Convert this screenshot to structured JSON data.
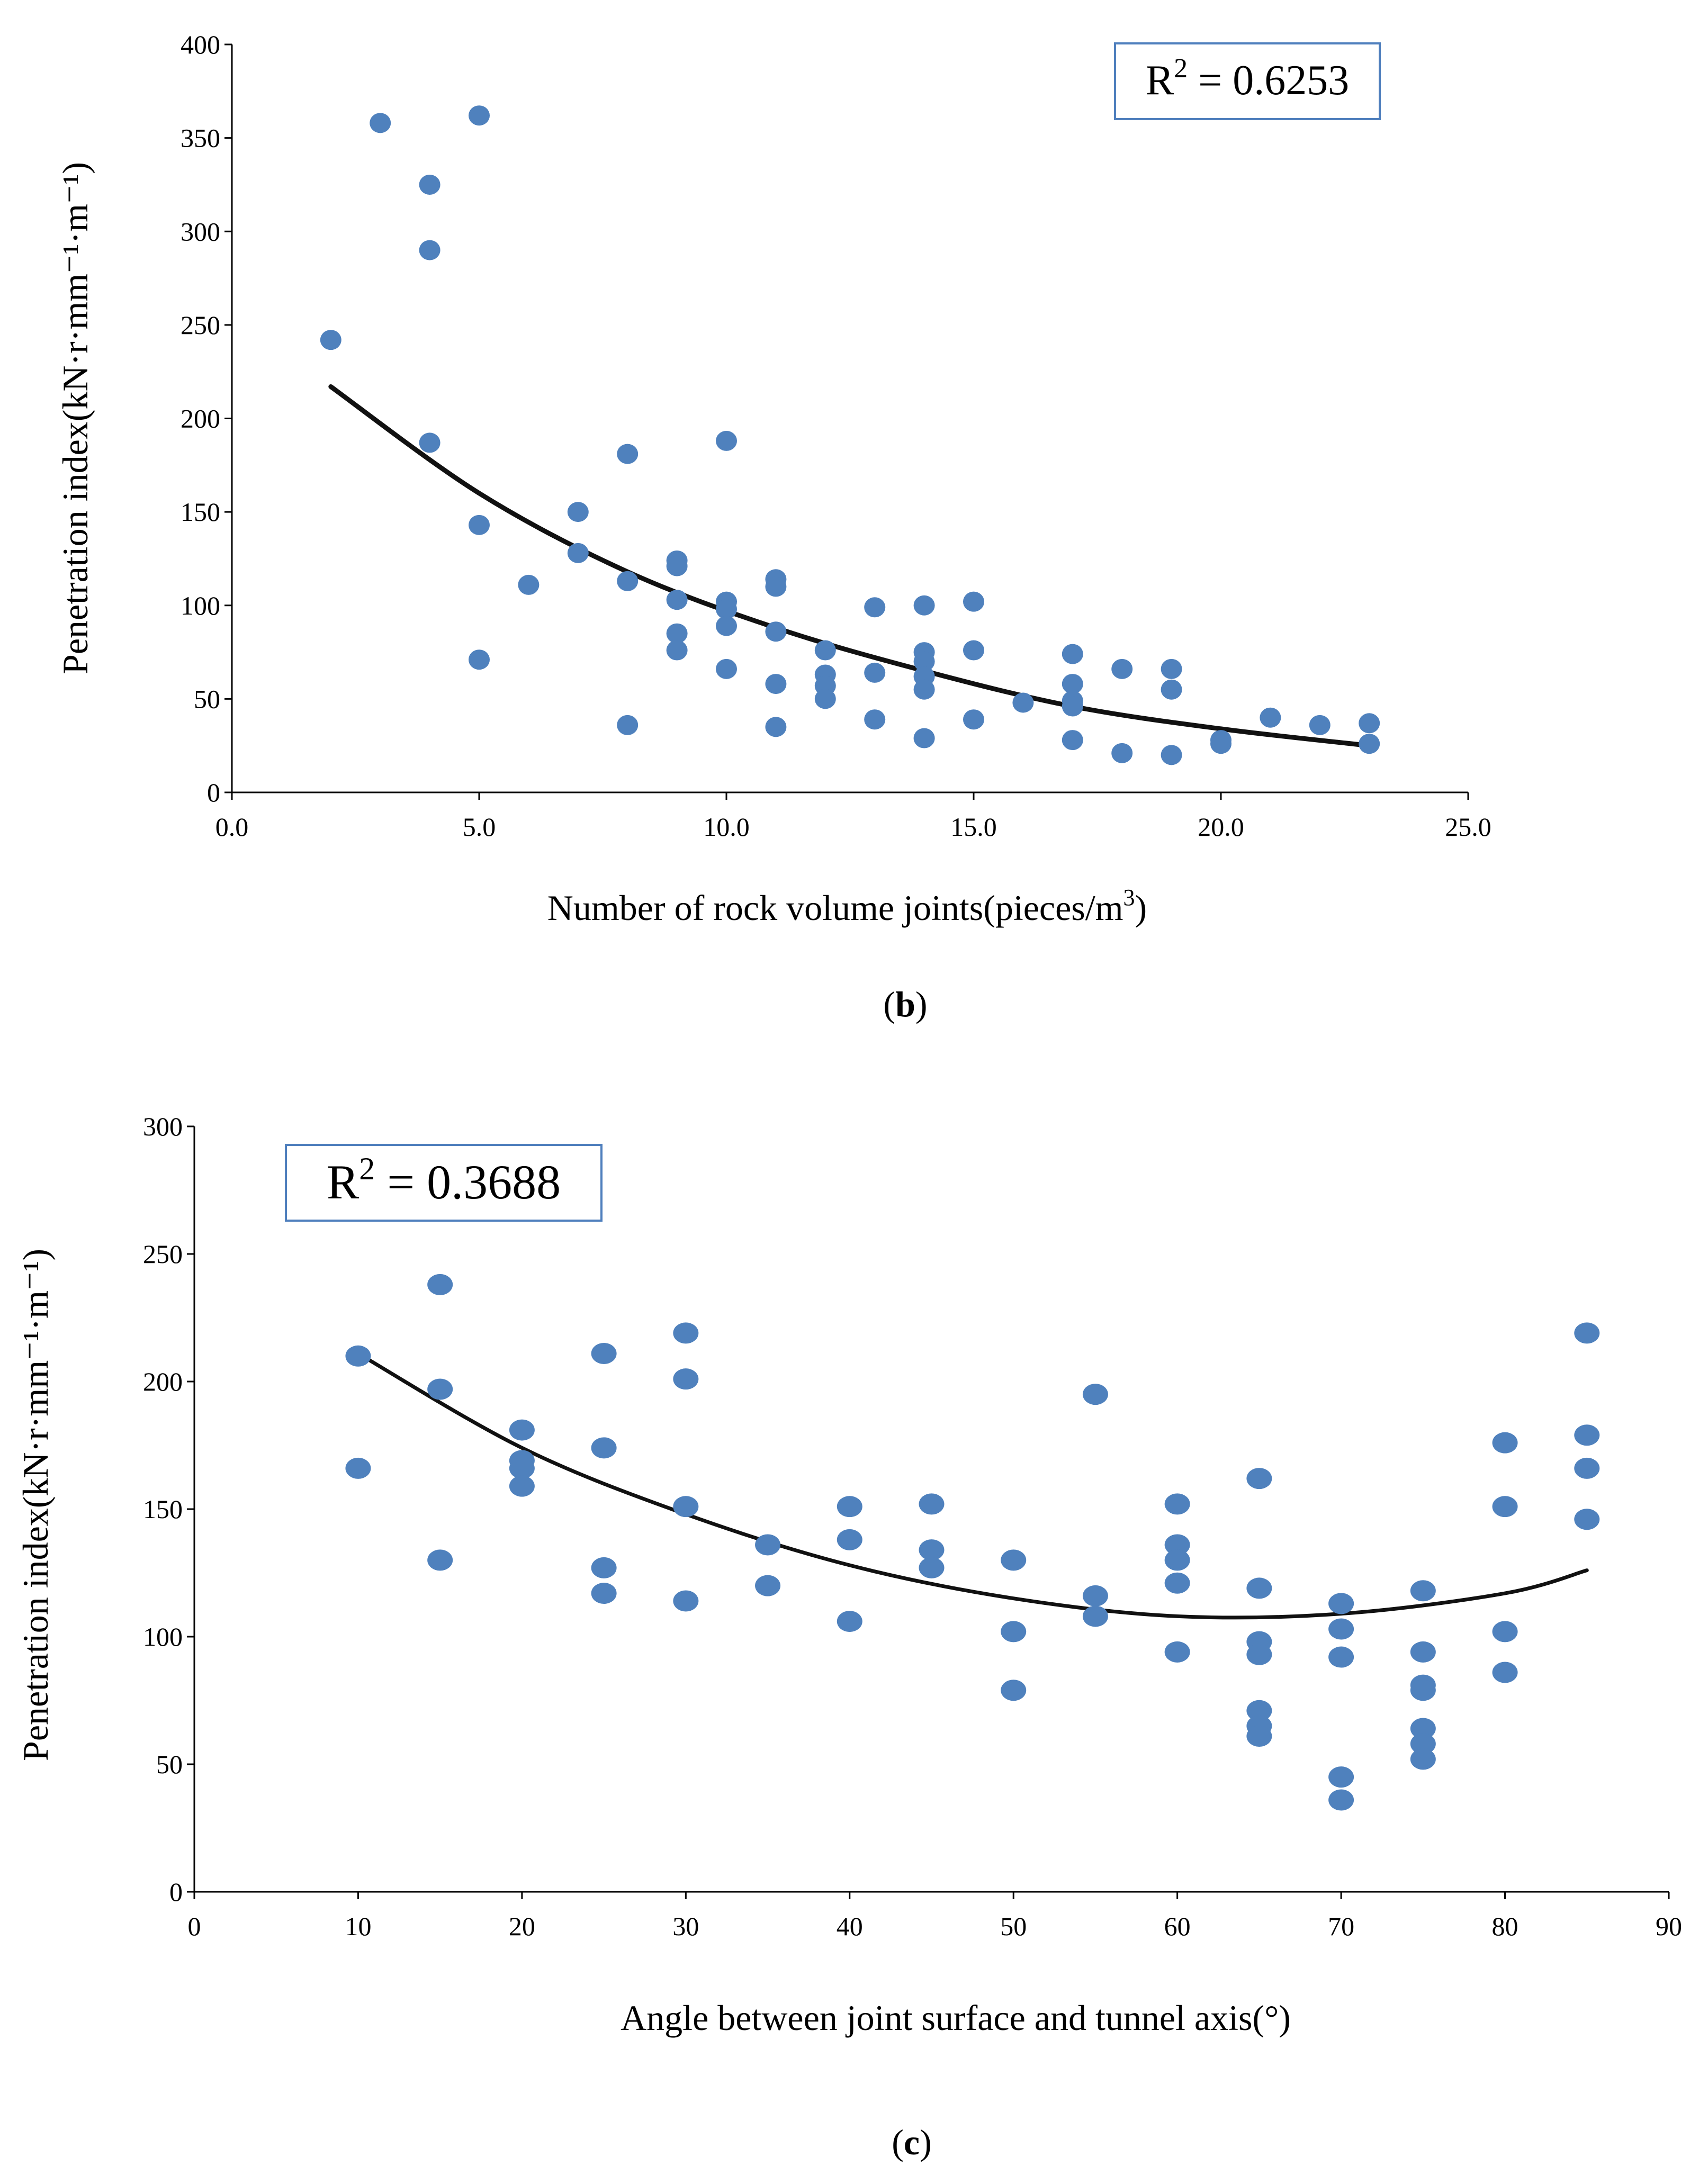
{
  "chart_data": [
    {
      "type": "scatter",
      "panel": "b",
      "xlabel": "Number of rock volume joints(pieces/m3)",
      "xlabel_main": "Number of rock volume joints(pieces/m",
      "xlabel_sup": "3",
      "xlabel_tail": ")",
      "ylabel": "Penetration index(kN·r·mm⁻¹·m⁻¹)",
      "xlim": [
        0,
        25
      ],
      "ylim": [
        0,
        400
      ],
      "xticks": [
        "0.0",
        "5.0",
        "10.0",
        "15.0",
        "20.0",
        "25.0"
      ],
      "yticks": [
        "0",
        "50",
        "100",
        "150",
        "200",
        "250",
        "300",
        "350",
        "400"
      ],
      "annotation": {
        "prefix": "R",
        "sup": "2",
        "value": " = 0.6253"
      },
      "caption": {
        "open": "(",
        "letter": "b",
        "close": ")"
      },
      "trendline": {
        "type": "polynomial",
        "x": [
          2,
          5,
          8,
          11,
          14,
          17,
          20,
          23
        ],
        "y": [
          217,
          160,
          118,
          88,
          65,
          46,
          34,
          25
        ]
      },
      "points": [
        [
          2,
          242
        ],
        [
          3,
          358
        ],
        [
          4,
          325
        ],
        [
          4,
          290
        ],
        [
          4,
          187
        ],
        [
          5,
          362
        ],
        [
          5,
          143
        ],
        [
          5,
          71
        ],
        [
          6,
          111
        ],
        [
          7,
          150
        ],
        [
          7,
          128
        ],
        [
          8,
          181
        ],
        [
          8,
          113
        ],
        [
          8,
          36
        ],
        [
          9,
          124
        ],
        [
          9,
          121
        ],
        [
          9,
          103
        ],
        [
          9,
          85
        ],
        [
          9,
          76
        ],
        [
          10,
          188
        ],
        [
          10,
          102
        ],
        [
          10,
          98
        ],
        [
          10,
          89
        ],
        [
          10,
          66
        ],
        [
          11,
          114
        ],
        [
          11,
          110
        ],
        [
          11,
          86
        ],
        [
          11,
          58
        ],
        [
          11,
          35
        ],
        [
          12,
          76
        ],
        [
          12,
          63
        ],
        [
          12,
          57
        ],
        [
          12,
          50
        ],
        [
          13,
          99
        ],
        [
          13,
          64
        ],
        [
          13,
          39
        ],
        [
          14,
          100
        ],
        [
          14,
          75
        ],
        [
          14,
          70
        ],
        [
          14,
          62
        ],
        [
          14,
          55
        ],
        [
          14,
          29
        ],
        [
          15,
          102
        ],
        [
          15,
          76
        ],
        [
          15,
          39
        ],
        [
          16,
          48
        ],
        [
          17,
          74
        ],
        [
          17,
          58
        ],
        [
          17,
          49
        ],
        [
          17,
          46
        ],
        [
          17,
          28
        ],
        [
          18,
          66
        ],
        [
          18,
          21
        ],
        [
          19,
          66
        ],
        [
          19,
          55
        ],
        [
          19,
          20
        ],
        [
          20,
          28
        ],
        [
          20,
          26
        ],
        [
          21,
          40
        ],
        [
          22,
          36
        ],
        [
          23,
          37
        ],
        [
          23,
          26
        ]
      ],
      "marker_color": "#4f81bd"
    },
    {
      "type": "scatter",
      "panel": "c",
      "xlabel": "Angle between joint surface and tunnel axis(°)",
      "ylabel": "Penetration index(kN·r·mm⁻¹·m⁻¹)",
      "xlim": [
        0,
        90
      ],
      "ylim": [
        0,
        300
      ],
      "xticks": [
        "0",
        "10",
        "20",
        "30",
        "40",
        "50",
        "60",
        "70",
        "80",
        "90"
      ],
      "yticks": [
        "0",
        "50",
        "100",
        "150",
        "200",
        "250",
        "300"
      ],
      "annotation": {
        "prefix": "R",
        "sup": "2",
        "value": " = 0.3688"
      },
      "caption": {
        "open": "(",
        "letter": "c",
        "close": ")"
      },
      "trendline": {
        "type": "polynomial",
        "x": [
          10,
          20,
          30,
          40,
          50,
          60,
          70,
          80,
          85
        ],
        "y": [
          211,
          174,
          148,
          128,
          115,
          108,
          109,
          117,
          126
        ]
      },
      "points": [
        [
          10,
          210
        ],
        [
          10,
          166
        ],
        [
          15,
          238
        ],
        [
          15,
          197
        ],
        [
          15,
          130
        ],
        [
          20,
          181
        ],
        [
          20,
          169
        ],
        [
          20,
          166
        ],
        [
          20,
          159
        ],
        [
          25,
          211
        ],
        [
          25,
          174
        ],
        [
          25,
          127
        ],
        [
          25,
          117
        ],
        [
          30,
          219
        ],
        [
          30,
          201
        ],
        [
          30,
          151
        ],
        [
          30,
          114
        ],
        [
          35,
          136
        ],
        [
          35,
          120
        ],
        [
          40,
          151
        ],
        [
          40,
          138
        ],
        [
          40,
          106
        ],
        [
          45,
          152
        ],
        [
          45,
          134
        ],
        [
          45,
          127
        ],
        [
          50,
          130
        ],
        [
          50,
          102
        ],
        [
          50,
          79
        ],
        [
          55,
          195
        ],
        [
          55,
          116
        ],
        [
          55,
          108
        ],
        [
          60,
          152
        ],
        [
          60,
          136
        ],
        [
          60,
          130
        ],
        [
          60,
          121
        ],
        [
          60,
          94
        ],
        [
          65,
          162
        ],
        [
          65,
          119
        ],
        [
          65,
          98
        ],
        [
          65,
          93
        ],
        [
          65,
          71
        ],
        [
          65,
          65
        ],
        [
          65,
          61
        ],
        [
          70,
          113
        ],
        [
          70,
          103
        ],
        [
          70,
          92
        ],
        [
          70,
          45
        ],
        [
          70,
          36
        ],
        [
          75,
          118
        ],
        [
          75,
          94
        ],
        [
          75,
          81
        ],
        [
          75,
          79
        ],
        [
          75,
          64
        ],
        [
          75,
          58
        ],
        [
          75,
          52
        ],
        [
          80,
          176
        ],
        [
          80,
          151
        ],
        [
          80,
          102
        ],
        [
          80,
          86
        ],
        [
          85,
          219
        ],
        [
          85,
          179
        ],
        [
          85,
          166
        ],
        [
          85,
          146
        ]
      ],
      "marker_color": "#4f81bd"
    }
  ]
}
